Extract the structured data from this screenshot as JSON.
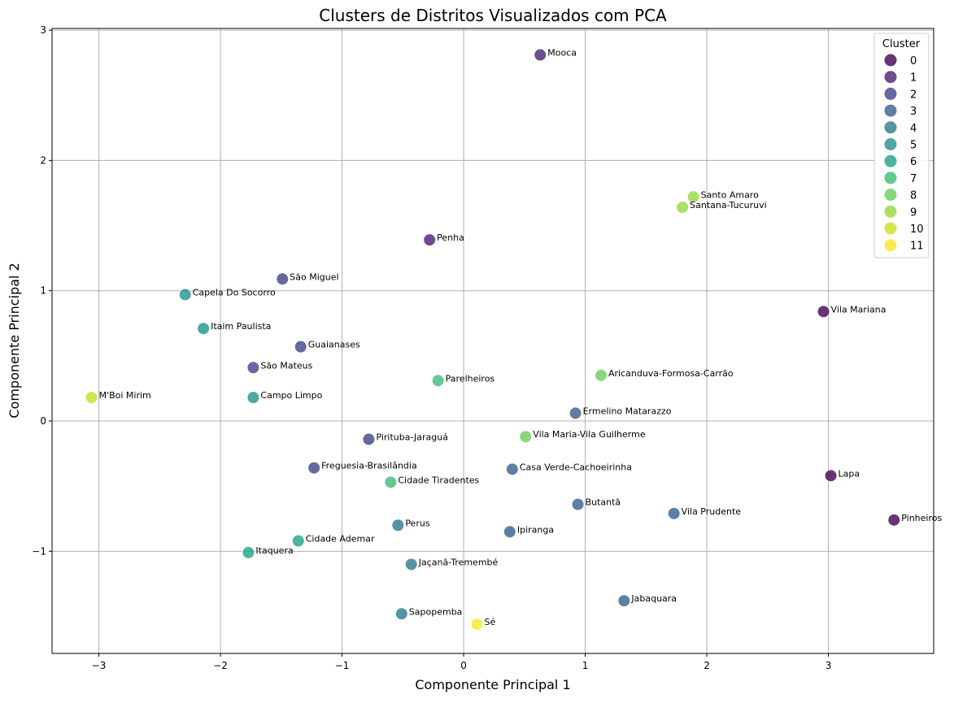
{
  "chart_data": {
    "type": "scatter",
    "title": "Clusters de Distritos Visualizados com PCA",
    "xlabel": "Componente Principal 1",
    "ylabel": "Componente Principal 2",
    "xlim": [
      -3.385,
      3.866
    ],
    "ylim": [
      -1.784,
      3.013
    ],
    "xticks": [
      -3,
      -2,
      -1,
      0,
      1,
      2,
      3
    ],
    "yticks": [
      -1,
      0,
      1,
      2,
      3
    ],
    "xtick_labels": [
      "−3",
      "−2",
      "−1",
      "0",
      "1",
      "2",
      "3"
    ],
    "ytick_labels": [
      "−1",
      "0",
      "1",
      "2",
      "3"
    ],
    "grid": true,
    "legend": {
      "title": "Cluster",
      "placement": "top-right",
      "entries": [
        "0",
        "1",
        "2",
        "3",
        "4",
        "5",
        "6",
        "7",
        "8",
        "9",
        "10",
        "11"
      ]
    },
    "colors": [
      "#440154",
      "#482374",
      "#404387",
      "#345f8d",
      "#2a788e",
      "#21918c",
      "#1fa187",
      "#3bbb75",
      "#6ccd5a",
      "#95d840",
      "#c8e020",
      "#fde725"
    ],
    "points": [
      {
        "label": "Mooca",
        "x": 0.63,
        "y": 2.81,
        "cluster": 1
      },
      {
        "label": "Santo Amaro",
        "x": 1.89,
        "y": 1.72,
        "cluster": 9
      },
      {
        "label": "Santana-Tucuruvi",
        "x": 1.8,
        "y": 1.64,
        "cluster": 9
      },
      {
        "label": "Penha",
        "x": -0.28,
        "y": 1.39,
        "cluster": 1
      },
      {
        "label": "São Miguel",
        "x": -1.49,
        "y": 1.09,
        "cluster": 2
      },
      {
        "label": "Capela Do Socorro",
        "x": -2.29,
        "y": 0.97,
        "cluster": 5
      },
      {
        "label": "Vila Mariana",
        "x": 2.96,
        "y": 0.84,
        "cluster": 0
      },
      {
        "label": "Itaim Paulista",
        "x": -2.14,
        "y": 0.71,
        "cluster": 5
      },
      {
        "label": "Guaianases",
        "x": -1.34,
        "y": 0.57,
        "cluster": 2
      },
      {
        "label": "São Mateus",
        "x": -1.73,
        "y": 0.41,
        "cluster": 2
      },
      {
        "label": "Parelheiros",
        "x": -0.21,
        "y": 0.31,
        "cluster": 7
      },
      {
        "label": "Aricanduva-Formosa-Carrão",
        "x": 1.13,
        "y": 0.35,
        "cluster": 8
      },
      {
        "label": "M'Boi Mirim",
        "x": -3.06,
        "y": 0.18,
        "cluster": 10
      },
      {
        "label": "Campo Limpo",
        "x": -1.73,
        "y": 0.18,
        "cluster": 5
      },
      {
        "label": "Ermelino Matarazzo",
        "x": 0.92,
        "y": 0.06,
        "cluster": 3
      },
      {
        "label": "Pirituba-Jaraguá",
        "x": -0.78,
        "y": -0.14,
        "cluster": 2
      },
      {
        "label": "Vila Maria-Vila Guilherme",
        "x": 0.51,
        "y": -0.12,
        "cluster": 8
      },
      {
        "label": "Freguesia-Brasilândia",
        "x": -1.23,
        "y": -0.36,
        "cluster": 2
      },
      {
        "label": "Casa Verde-Cachoeirinha",
        "x": 0.4,
        "y": -0.37,
        "cluster": 3
      },
      {
        "label": "Cidade Tiradentes",
        "x": -0.6,
        "y": -0.47,
        "cluster": 7
      },
      {
        "label": "Lapa",
        "x": 3.02,
        "y": -0.42,
        "cluster": 0
      },
      {
        "label": "Butantã",
        "x": 0.94,
        "y": -0.64,
        "cluster": 3
      },
      {
        "label": "Vila Prudente",
        "x": 1.73,
        "y": -0.71,
        "cluster": 3
      },
      {
        "label": "Pinheiros",
        "x": 3.54,
        "y": -0.76,
        "cluster": 0
      },
      {
        "label": "Perus",
        "x": -0.54,
        "y": -0.8,
        "cluster": 4
      },
      {
        "label": "Ipiranga",
        "x": 0.38,
        "y": -0.85,
        "cluster": 3
      },
      {
        "label": "Cidade Ademar",
        "x": -1.36,
        "y": -0.92,
        "cluster": 6
      },
      {
        "label": "Itaquera",
        "x": -1.77,
        "y": -1.01,
        "cluster": 6
      },
      {
        "label": "Jaçanã-Tremembé",
        "x": -0.43,
        "y": -1.1,
        "cluster": 4
      },
      {
        "label": "Jabaquara",
        "x": 1.32,
        "y": -1.38,
        "cluster": 3
      },
      {
        "label": "Sapopemba",
        "x": -0.51,
        "y": -1.48,
        "cluster": 4
      },
      {
        "label": "Sé",
        "x": 0.11,
        "y": -1.56,
        "cluster": 11
      }
    ]
  }
}
